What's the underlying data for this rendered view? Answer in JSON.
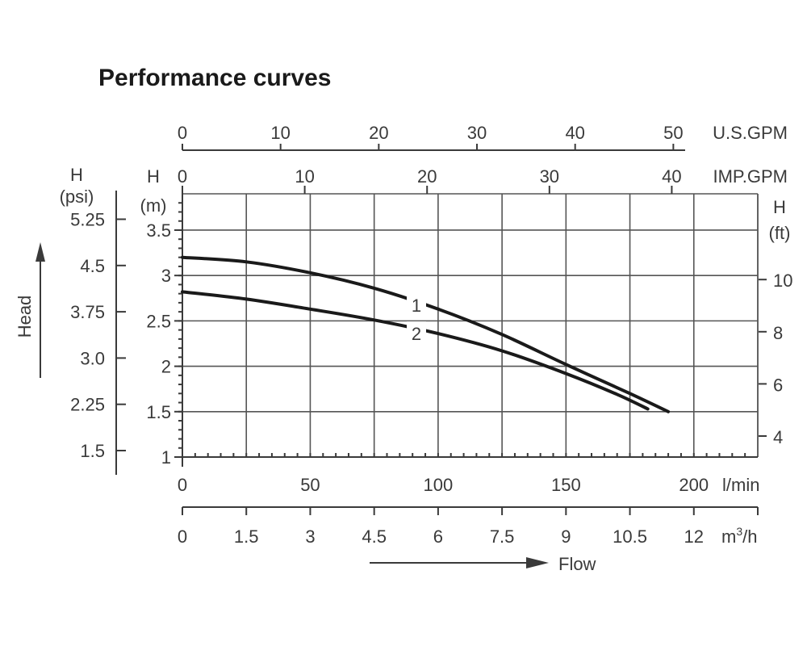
{
  "chart_data": {
    "type": "line",
    "title": "Performance curves",
    "xlabel": "Flow",
    "ylabel": "Head",
    "grid": true,
    "x_axis": {
      "unit": "l/min",
      "range": [
        0,
        225
      ],
      "ticks": [
        0,
        50,
        100,
        150,
        200
      ],
      "tick_labels": [
        "0",
        "50",
        "100",
        "150",
        "200"
      ]
    },
    "secondary_x_axes": [
      {
        "unit": "m³/h",
        "unit_base": "m",
        "unit_sup": "3",
        "unit_tail": "/h",
        "position": "bottom",
        "ticks": [
          0,
          1.5,
          3,
          4.5,
          6,
          7.5,
          9,
          10.5,
          12
        ],
        "tick_labels": [
          "0",
          "1.5",
          "3",
          "4.5",
          "6",
          "7.5",
          "9",
          "10.5",
          "12"
        ]
      },
      {
        "unit": "IMP.GPM",
        "position": "top",
        "ticks": [
          0,
          10,
          20,
          30,
          40
        ],
        "tick_labels": [
          "0",
          "10",
          "20",
          "30",
          "40"
        ]
      },
      {
        "unit": "U.S.GPM",
        "position": "top",
        "ticks": [
          0,
          10,
          20,
          30,
          40,
          50
        ],
        "tick_labels": [
          "0",
          "10",
          "20",
          "30",
          "40",
          "50"
        ]
      }
    ],
    "y_axis": {
      "label": "H",
      "unit": "(m)",
      "range": [
        1,
        3.9
      ],
      "ticks": [
        1,
        1.5,
        2,
        2.5,
        3,
        3.5
      ],
      "tick_labels": [
        "1",
        "1.5",
        "2",
        "2.5",
        "3",
        "3.5"
      ]
    },
    "secondary_y_axes": [
      {
        "label": "H",
        "unit": "(psi)",
        "position": "left",
        "ticks": [
          1.5,
          2.25,
          3.0,
          3.75,
          4.5,
          5.25
        ],
        "tick_labels": [
          "1.5",
          "2.25",
          "3.0",
          "3.75",
          "4.5",
          "5.25"
        ]
      },
      {
        "label": "H",
        "unit": "(ft)",
        "position": "right",
        "ticks": [
          4,
          6,
          8,
          10
        ],
        "tick_labels": [
          "4",
          "6",
          "8",
          "10"
        ]
      }
    ],
    "series": [
      {
        "name": "1",
        "x": [
          0,
          25,
          50,
          75,
          100,
          125,
          150,
          175,
          190
        ],
        "y": [
          3.2,
          3.15,
          3.03,
          2.86,
          2.63,
          2.35,
          2.02,
          1.7,
          1.5
        ]
      },
      {
        "name": "2",
        "x": [
          0,
          25,
          50,
          75,
          100,
          125,
          150,
          170,
          182
        ],
        "y": [
          2.82,
          2.74,
          2.63,
          2.51,
          2.36,
          2.17,
          1.92,
          1.69,
          1.53
        ]
      }
    ]
  }
}
